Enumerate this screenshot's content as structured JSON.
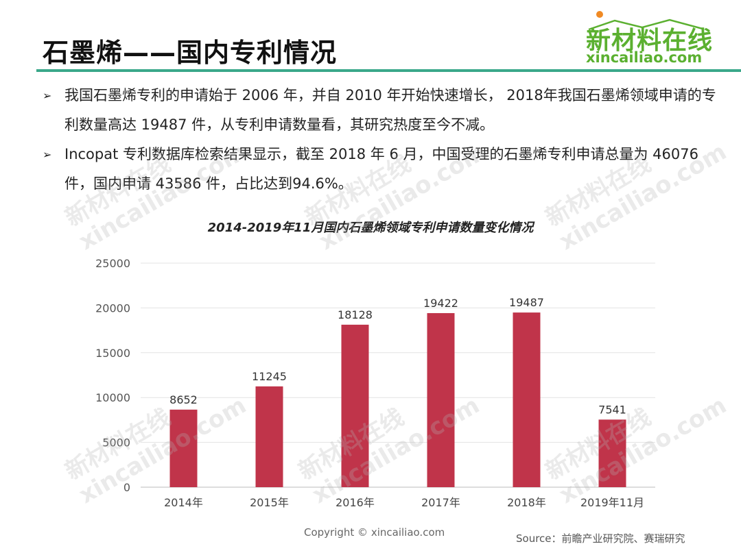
{
  "header": {
    "title": "石墨烯——国内专利情况",
    "logo_cn": "新材料在线",
    "logo_en": "xincailiao.com",
    "accent_color": "#3aa88a"
  },
  "bullets": [
    {
      "icon": "arrow-bullet-icon",
      "text": "我国石墨烯专利的申请始于 2006 年，并自 2010 年开始快速增长， 2018年我国石墨烯领域申请的专利数量高达 19487 件，从专利申请数量看，其研究热度至今不减。"
    },
    {
      "icon": "arrow-bullet-icon",
      "text": "Incopat 专利数据库检索结果显示，截至 2018 年 6 月，中国受理的石墨烯专利申请总量为 46076 件，国内申请 43586 件，占比达到94.6%。"
    }
  ],
  "chart_data": {
    "type": "bar",
    "title": "2014-2019年11月国内石墨烯领域专利申请数量变化情况",
    "categories": [
      "2014年",
      "2015年",
      "2016年",
      "2017年",
      "2018年",
      "2019年11月"
    ],
    "values": [
      8652,
      11245,
      18128,
      19422,
      19487,
      7541
    ],
    "data_labels": [
      "8652",
      "11245",
      "18128",
      "19422",
      "19487",
      "7541"
    ],
    "ylim": [
      0,
      25000
    ],
    "yticks": [
      0,
      5000,
      10000,
      15000,
      20000,
      25000
    ],
    "ytick_labels": [
      "0",
      "5000",
      "10000",
      "15000",
      "20000",
      "25000"
    ],
    "grid": true,
    "bar_color": "#c0344a",
    "xlabel": "",
    "ylabel": ""
  },
  "footer": {
    "copyright": "Copyright © xincailiao.com",
    "source": "Source：前瞻产业研究院、赛瑞研究"
  },
  "watermark": {
    "cn": "新材料在线",
    "en": "xincailiao.com"
  }
}
